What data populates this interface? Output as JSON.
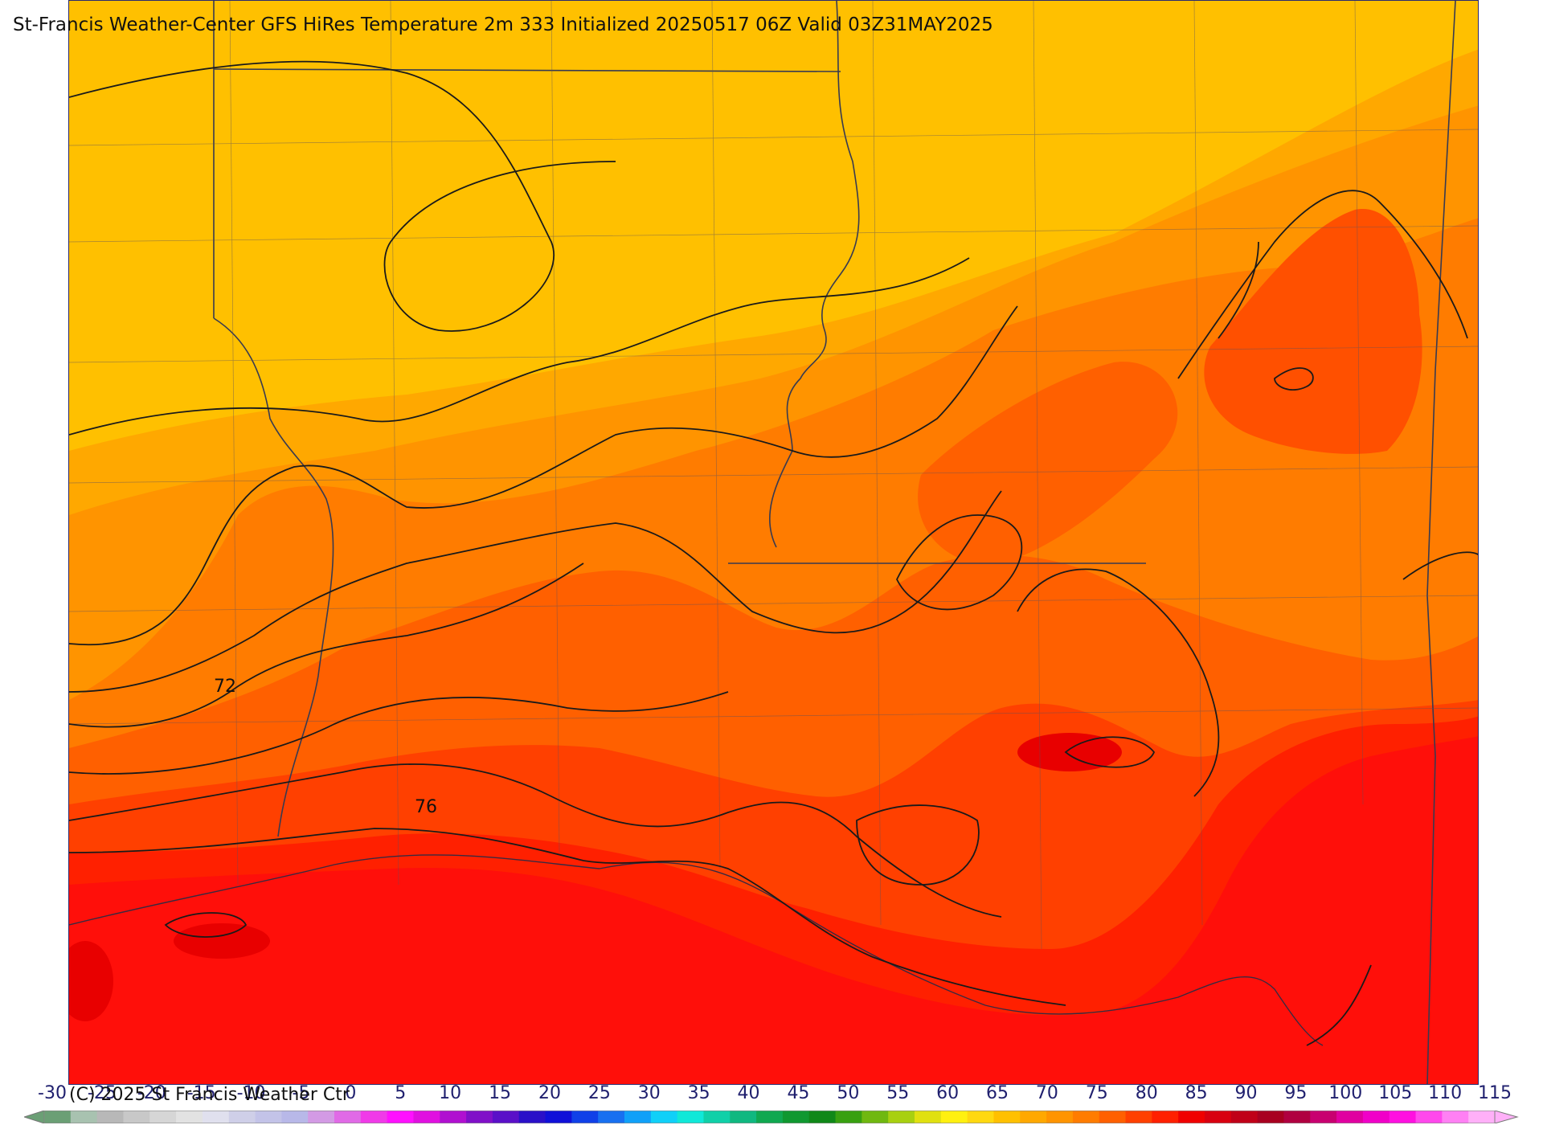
{
  "title": "St-Francis Weather-Center GFS HiRes Temperature 2m  333 Initialized 20250517 06Z Valid 03Z31MAY2025",
  "contour_labels": [
    "72",
    "76"
  ],
  "copyright": "(C) 2025 St Francis Weather Ctr",
  "colorbar": {
    "ticks": [
      "-30",
      "-25",
      "-20",
      "-15",
      "-10",
      "-5",
      "0",
      "5",
      "10",
      "15",
      "20",
      "25",
      "30",
      "35",
      "40",
      "45",
      "50",
      "55",
      "60",
      "65",
      "70",
      "75",
      "80",
      "85",
      "90",
      "95",
      "100",
      "105",
      "110",
      "115"
    ],
    "colors": [
      "#6b9f75",
      "#a8c2b0",
      "#b8b8b8",
      "#c8c8c8",
      "#d6d6d6",
      "#e2e2e2",
      "#e0e0ee",
      "#cfcfe8",
      "#c3c3e8",
      "#b8b8e8",
      "#d39ae4",
      "#e06ae6",
      "#f03ae8",
      "#ff10ff",
      "#e010e0",
      "#b010d0",
      "#8010c8",
      "#5a10c8",
      "#2a10c8",
      "#1010d8",
      "#1040e8",
      "#1870f0",
      "#10a0f8",
      "#10d0f8",
      "#10e8d8",
      "#10d0a8",
      "#10b880",
      "#10a850",
      "#109830",
      "#108818",
      "#38a010",
      "#70b810",
      "#a8d010",
      "#e0e010",
      "#fff010",
      "#ffd810",
      "#ffc000",
      "#ffa800",
      "#ff9400",
      "#ff7c00",
      "#ff6000",
      "#ff4000",
      "#ff2000",
      "#f00000",
      "#d80010",
      "#c00018",
      "#a80020",
      "#b00040",
      "#c80070",
      "#e000a0",
      "#f000c8",
      "#ff10e0",
      "#ff48ec",
      "#ff80f4",
      "#ffb0f8"
    ]
  },
  "colors": {
    "temp_60": "#ffc000",
    "temp_64": "#ffa800",
    "temp_66": "#ff9400",
    "temp_70": "#ff7c00",
    "temp_72": "#ff6000",
    "temp_74": "#ff4000",
    "temp_76": "#ff2000",
    "temp_78": "#ff0f0a",
    "temp_80": "#e80000",
    "contour": "#1a1a1a",
    "boundary": "#383a50"
  }
}
